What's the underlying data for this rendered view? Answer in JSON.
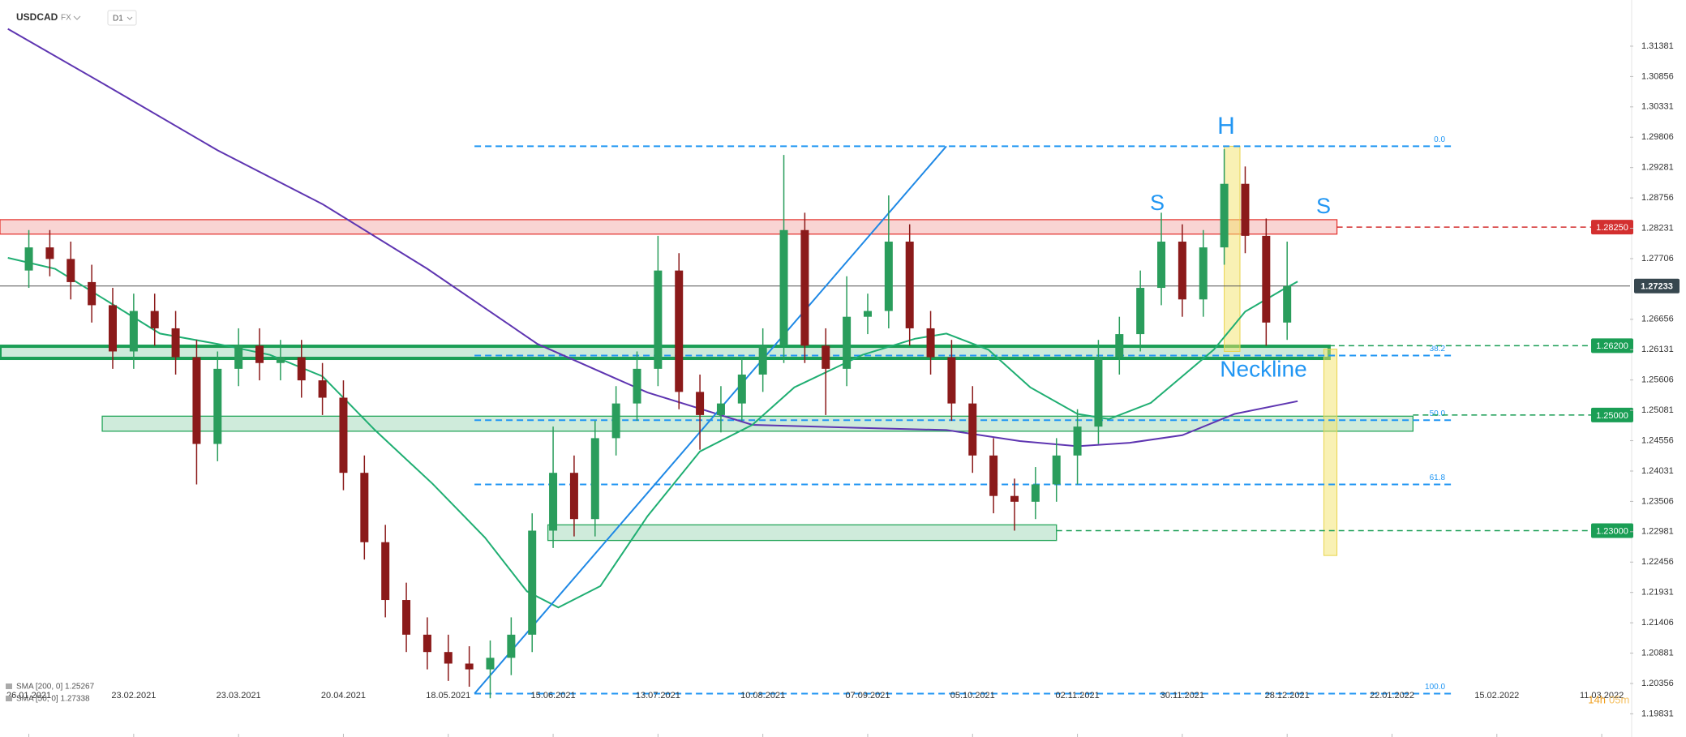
{
  "header": {
    "symbol": "USDCAD",
    "market": "FX",
    "timeframe": "D1"
  },
  "chart_data": {
    "type": "candlestick",
    "x": [
      0,
      4,
      8,
      12,
      16,
      20,
      24,
      28,
      32,
      36,
      40,
      44,
      48,
      52,
      56,
      60,
      64,
      68,
      72,
      76,
      80,
      84,
      88,
      92,
      96,
      100,
      104,
      108,
      112,
      116,
      120,
      124,
      128,
      132,
      136,
      140,
      144,
      148,
      152,
      156,
      160,
      164,
      168,
      172,
      176,
      180,
      184,
      188,
      192,
      196,
      200,
      204,
      208,
      212,
      216,
      220,
      224,
      228,
      232,
      236,
      240
    ],
    "open": [
      1.275,
      1.279,
      1.277,
      1.273,
      1.269,
      1.261,
      1.268,
      1.265,
      1.26,
      1.245,
      1.258,
      1.262,
      1.259,
      1.26,
      1.256,
      1.253,
      1.24,
      1.228,
      1.218,
      1.212,
      1.209,
      1.207,
      1.206,
      1.208,
      1.212,
      1.23,
      1.24,
      1.232,
      1.246,
      1.252,
      1.258,
      1.275,
      1.254,
      1.25,
      1.252,
      1.257,
      1.262,
      1.282,
      1.262,
      1.258,
      1.267,
      1.268,
      1.28,
      1.265,
      1.26,
      1.252,
      1.243,
      1.236,
      1.235,
      1.238,
      1.243,
      1.248,
      1.26,
      1.264,
      1.272,
      1.28,
      1.27,
      1.279,
      1.29,
      1.281,
      1.266
    ],
    "high": [
      1.282,
      1.282,
      1.28,
      1.276,
      1.272,
      1.271,
      1.271,
      1.268,
      1.263,
      1.261,
      1.265,
      1.265,
      1.263,
      1.263,
      1.259,
      1.256,
      1.243,
      1.231,
      1.221,
      1.215,
      1.212,
      1.21,
      1.211,
      1.215,
      1.233,
      1.248,
      1.243,
      1.249,
      1.255,
      1.261,
      1.281,
      1.278,
      1.257,
      1.255,
      1.26,
      1.265,
      1.295,
      1.285,
      1.265,
      1.274,
      1.271,
      1.288,
      1.283,
      1.268,
      1.263,
      1.255,
      1.246,
      1.239,
      1.241,
      1.246,
      1.251,
      1.263,
      1.267,
      1.275,
      1.285,
      1.283,
      1.282,
      1.296,
      1.293,
      1.284,
      1.28
    ],
    "low": [
      1.272,
      1.274,
      1.27,
      1.266,
      1.258,
      1.258,
      1.262,
      1.257,
      1.238,
      1.242,
      1.255,
      1.256,
      1.256,
      1.253,
      1.25,
      1.237,
      1.225,
      1.215,
      1.209,
      1.206,
      1.204,
      1.203,
      1.201,
      1.205,
      1.209,
      1.227,
      1.229,
      1.229,
      1.243,
      1.249,
      1.255,
      1.251,
      1.244,
      1.247,
      1.249,
      1.254,
      1.259,
      1.259,
      1.25,
      1.255,
      1.264,
      1.265,
      1.262,
      1.257,
      1.249,
      1.24,
      1.233,
      1.23,
      1.232,
      1.235,
      1.238,
      1.245,
      1.257,
      1.261,
      1.269,
      1.267,
      1.267,
      1.276,
      1.278,
      1.262,
      1.263
    ],
    "close": [
      1.279,
      1.277,
      1.273,
      1.269,
      1.261,
      1.268,
      1.265,
      1.26,
      1.245,
      1.258,
      1.262,
      1.259,
      1.26,
      1.256,
      1.253,
      1.24,
      1.228,
      1.218,
      1.212,
      1.209,
      1.207,
      1.206,
      1.208,
      1.212,
      1.23,
      1.24,
      1.232,
      1.246,
      1.252,
      1.258,
      1.275,
      1.254,
      1.25,
      1.252,
      1.257,
      1.262,
      1.282,
      1.262,
      1.258,
      1.267,
      1.268,
      1.28,
      1.265,
      1.26,
      1.252,
      1.243,
      1.236,
      1.235,
      1.238,
      1.243,
      1.248,
      1.26,
      1.264,
      1.272,
      1.28,
      1.27,
      1.279,
      1.29,
      1.281,
      1.266,
      1.2723
    ],
    "up_color": "#2a9d5c",
    "down_color": "#8b1a1a",
    "xlim": [
      -5.5,
      305.4
    ],
    "ylim": [
      1.1943,
      1.3218
    ],
    "xticks": [
      {
        "value": 0,
        "label": "26.01.2021"
      },
      {
        "value": 20,
        "label": "23.02.2021"
      },
      {
        "value": 40,
        "label": "23.03.2021"
      },
      {
        "value": 60,
        "label": "20.04.2021"
      },
      {
        "value": 80,
        "label": "18.05.2021"
      },
      {
        "value": 100,
        "label": "15.06.2021"
      },
      {
        "value": 120,
        "label": "13.07.2021"
      },
      {
        "value": 140,
        "label": "10.08.2021"
      },
      {
        "value": 160,
        "label": "07.09.2021"
      },
      {
        "value": 180,
        "label": "05.10.2021"
      },
      {
        "value": 200,
        "label": "02.11.2021"
      },
      {
        "value": 220,
        "label": "30.11.2021"
      },
      {
        "value": 240,
        "label": "28.12.2021"
      },
      {
        "value": 260,
        "label": "22.01.2022"
      },
      {
        "value": 280,
        "label": "15.02.2022"
      },
      {
        "value": 300,
        "label": "11.03.2022"
      }
    ],
    "yticks": [
      1.31381,
      1.30856,
      1.30331,
      1.29806,
      1.29281,
      1.28756,
      1.28231,
      1.27706,
      1.26656,
      1.26131,
      1.25606,
      1.25081,
      1.24556,
      1.24031,
      1.23506,
      1.22981,
      1.22456,
      1.21931,
      1.21406,
      1.20881,
      1.20356,
      1.19831
    ],
    "sma": [
      {
        "name": "SMA [200, 0] 1.25267",
        "color": "#5e35b1",
        "x": [
          -4,
          15,
          36,
          56,
          76,
          97,
          118,
          138,
          158,
          175,
          189,
          200,
          210,
          220,
          230,
          242
        ],
        "values": [
          1.3168,
          1.3069,
          1.2958,
          1.2865,
          1.2753,
          1.2623,
          1.2539,
          1.2483,
          1.2478,
          1.2474,
          1.2455,
          1.2446,
          1.2452,
          1.2465,
          1.2502,
          1.2524
        ]
      },
      {
        "name": "SMA [50, 0] 1.27338",
        "color": "#1fae72",
        "x": [
          -4,
          5,
          15,
          25,
          36,
          46,
          56,
          66,
          77,
          87,
          95,
          101,
          109,
          118,
          128,
          138,
          146,
          159,
          169,
          175,
          183,
          191,
          200,
          206,
          214,
          220,
          226,
          232,
          239,
          242
        ],
        "values": [
          1.2772,
          1.2753,
          1.2697,
          1.2641,
          1.2623,
          1.2604,
          1.2567,
          1.2474,
          1.2381,
          1.2288,
          1.2195,
          1.2167,
          1.2204,
          1.2325,
          1.2437,
          1.2483,
          1.2548,
          1.2604,
          1.2632,
          1.2641,
          1.2613,
          1.2548,
          1.2502,
          1.2493,
          1.2521,
          1.2567,
          1.2613,
          1.2679,
          1.2716,
          1.2731
        ]
      }
    ],
    "trendline": {
      "color": "#1e88e5",
      "x": [
        85,
        175
      ],
      "values": [
        1.2018,
        1.2965
      ]
    },
    "fibonacci": {
      "color": "#2196f3",
      "x": [
        85,
        272
      ],
      "levels": [
        {
          "ratio": {
            "value": 0,
            "label": "0.0"
          },
          "price": 1.2965
        },
        {
          "ratio": {
            "value": 38.2,
            "label": "38.2"
          },
          "price": 1.2603
        },
        {
          "ratio": {
            "value": 50,
            "label": "50.0"
          },
          "price": 1.2491
        },
        {
          "ratio": {
            "value": 61.8,
            "label": "61.8"
          },
          "price": 1.238
        },
        {
          "ratio": {
            "value": 100,
            "label": "100.0"
          },
          "price": 1.2018
        }
      ]
    },
    "zones": [
      {
        "color": "#e53935",
        "x": [
          -5.5,
          249.5
        ],
        "range": [
          1.2813,
          1.2838
        ]
      },
      {
        "color": "#1a9e55",
        "x": [
          -5.5,
          248
        ],
        "range": [
          1.2598,
          1.2619
        ]
      },
      {
        "color": "#26a65b",
        "x": [
          14,
          264
        ],
        "range": [
          1.2472,
          1.2498
        ]
      },
      {
        "color": "#26a65b",
        "x": [
          99,
          196
        ],
        "range": [
          1.2283,
          1.231
        ]
      }
    ],
    "highlights": {
      "color": "#f3e46a",
      "items": [
        {
          "x": [
            228,
            231
          ],
          "range": [
            1.261,
            1.2965
          ]
        },
        {
          "x": [
            247,
            249.5
          ],
          "range": [
            1.2257,
            1.2614
          ]
        }
      ]
    },
    "price_levels": [
      {
        "price": {
          "value": 1.2825,
          "label": "1.28250"
        },
        "color": "#d32f2f",
        "from": 249.5
      },
      {
        "price": 1.27233,
        "color": "#37474f",
        "from": -5.5
      },
      {
        "price": {
          "value": 1.262,
          "label": "1.26200"
        },
        "color": "#1a9e55",
        "from": 248
      },
      {
        "price": {
          "value": 1.25,
          "label": "1.25000"
        },
        "color": "#1a9e55",
        "from": 264
      },
      {
        "price": {
          "value": 1.23,
          "label": "1.23000"
        },
        "color": "#1a9e55",
        "from": 196
      }
    ],
    "annotations": [
      "H",
      "S",
      "S",
      "Neckline"
    ],
    "countdown": {
      "hours": "14h",
      "minutes": "05m"
    }
  }
}
